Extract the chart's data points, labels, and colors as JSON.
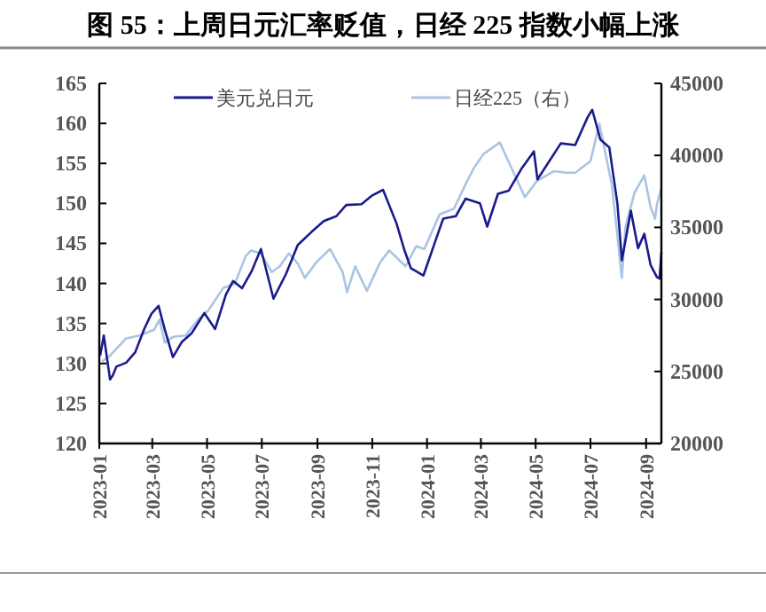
{
  "chart_data": {
    "type": "line",
    "title": "图 55：上周日元汇率贬值，日经 225 指数小幅上涨",
    "xlim": [
      "2023-01-01",
      "2024-09-18"
    ],
    "xticks": [
      "2023-01",
      "2023-03",
      "2023-05",
      "2023-07",
      "2023-09",
      "2023-11",
      "2024-01",
      "2024-03",
      "2024-05",
      "2024-07",
      "2024-09"
    ],
    "ylim": [
      120,
      165
    ],
    "yticks": [
      120,
      125,
      130,
      135,
      140,
      145,
      150,
      155,
      160,
      165
    ],
    "y2lim": [
      20000,
      45000
    ],
    "y2ticks": [
      20000,
      25000,
      30000,
      35000,
      40000,
      45000
    ],
    "legend": "top",
    "grid": false,
    "marker": "none",
    "line_style": "solid",
    "series": [
      {
        "name": "美元兑日元",
        "color": "#1a1a8c",
        "x": [
          "2023-01-02",
          "2023-01-06",
          "2023-01-13",
          "2023-01-16",
          "2023-01-20",
          "2023-01-31",
          "2023-02-10",
          "2023-02-20",
          "2023-02-28",
          "2023-03-08",
          "2023-03-15",
          "2023-03-24",
          "2023-04-03",
          "2023-04-14",
          "2023-04-28",
          "2023-05-10",
          "2023-05-22",
          "2023-05-30",
          "2023-06-09",
          "2023-06-20",
          "2023-06-30",
          "2023-07-14",
          "2023-07-28",
          "2023-08-10",
          "2023-08-25",
          "2023-09-08",
          "2023-09-22",
          "2023-10-03",
          "2023-10-20",
          "2023-11-01",
          "2023-11-13",
          "2023-11-28",
          "2023-12-07",
          "2023-12-14",
          "2023-12-28",
          "2024-01-10",
          "2024-01-19",
          "2024-02-02",
          "2024-02-13",
          "2024-02-29",
          "2024-03-08",
          "2024-03-20",
          "2024-04-01",
          "2024-04-15",
          "2024-04-29",
          "2024-05-03",
          "2024-05-29",
          "2024-06-14",
          "2024-06-28",
          "2024-07-03",
          "2024-07-12",
          "2024-07-22",
          "2024-07-31",
          "2024-08-05",
          "2024-08-15",
          "2024-08-23",
          "2024-08-30",
          "2024-09-06",
          "2024-09-13",
          "2024-09-16",
          "2024-09-18"
        ],
        "values": [
          131,
          133.5,
          128,
          128.5,
          129.6,
          130.1,
          131.4,
          134.3,
          136.2,
          137.2,
          134.2,
          130.8,
          132.7,
          133.8,
          136.3,
          134.3,
          138.6,
          140.3,
          139.4,
          141.6,
          144.3,
          138.1,
          141.2,
          144.8,
          146.4,
          147.8,
          148.4,
          149.8,
          149.9,
          151,
          151.7,
          147.5,
          144.1,
          141.9,
          141,
          145.2,
          148.1,
          148.4,
          150.6,
          150,
          147.1,
          151.2,
          151.6,
          154.3,
          156.5,
          153,
          157.5,
          157.3,
          160.8,
          161.7,
          158,
          157,
          150,
          142.9,
          149.1,
          144.4,
          146.2,
          142.3,
          140.8,
          140.6,
          143.9
        ]
      },
      {
        "name": "日经225（右）",
        "color": "#a9c4e4",
        "axis": "y2",
        "x": [
          "2023-01-04",
          "2023-01-13",
          "2023-01-31",
          "2023-02-15",
          "2023-03-03",
          "2023-03-09",
          "2023-03-15",
          "2023-03-24",
          "2023-04-07",
          "2023-04-21",
          "2023-05-02",
          "2023-05-19",
          "2023-06-01",
          "2023-06-13",
          "2023-06-19",
          "2023-06-30",
          "2023-07-12",
          "2023-07-21",
          "2023-07-31",
          "2023-08-10",
          "2023-08-18",
          "2023-08-31",
          "2023-09-15",
          "2023-09-29",
          "2023-10-04",
          "2023-10-13",
          "2023-10-26",
          "2023-11-10",
          "2023-11-20",
          "2023-12-08",
          "2023-12-20",
          "2023-12-29",
          "2024-01-15",
          "2024-01-31",
          "2024-02-13",
          "2024-02-22",
          "2024-03-04",
          "2024-03-22",
          "2024-04-05",
          "2024-04-19",
          "2024-05-02",
          "2024-05-21",
          "2024-06-04",
          "2024-06-14",
          "2024-07-01",
          "2024-07-11",
          "2024-07-25",
          "2024-08-05",
          "2024-08-09",
          "2024-08-19",
          "2024-08-30",
          "2024-09-06",
          "2024-09-11",
          "2024-09-13",
          "2024-09-18"
        ],
        "values": [
          25700,
          26100,
          27300,
          27500,
          27900,
          28600,
          27000,
          27400,
          27500,
          28600,
          29200,
          30800,
          31100,
          33000,
          33400,
          33200,
          31900,
          32300,
          33200,
          32500,
          31500,
          32600,
          33500,
          31900,
          30500,
          32300,
          30600,
          32600,
          33400,
          32300,
          33700,
          33500,
          35900,
          36300,
          38000,
          39100,
          40100,
          40900,
          39000,
          37100,
          38200,
          38900,
          38800,
          38800,
          39600,
          42200,
          37900,
          31500,
          35000,
          37400,
          38600,
          36400,
          35600,
          36600,
          37700
        ]
      }
    ]
  }
}
